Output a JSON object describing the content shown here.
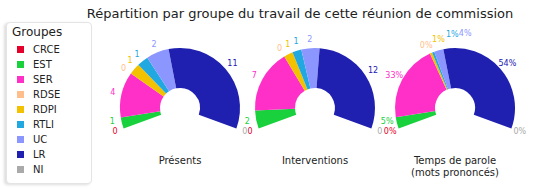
{
  "title": "Répartition par groupe du travail de cette réunion de commission",
  "legend_title": "Groupes",
  "chart_data": [
    {
      "type": "pie",
      "title": "Présents",
      "categories": [
        "CRCE",
        "EST",
        "SER",
        "RDSE",
        "RDPI",
        "RTLI",
        "UC",
        "LR",
        "NI"
      ],
      "values": [
        0,
        1,
        4,
        0,
        1,
        1,
        2,
        11,
        0
      ],
      "colors": [
        "#e4002b",
        "#19d13c",
        "#ff30c8",
        "#ffbf8c",
        "#f2c200",
        "#22a8e0",
        "#8c96ff",
        "#2020b0",
        "#aaaaaa"
      ],
      "data_labels": true
    },
    {
      "type": "pie",
      "title": "Interventions",
      "categories": [
        "CRCE",
        "EST",
        "SER",
        "RDSE",
        "RDPI",
        "RTLI",
        "UC",
        "LR",
        "NI"
      ],
      "values": [
        0,
        2,
        7,
        0,
        1,
        1,
        2,
        12,
        0
      ],
      "colors": [
        "#e4002b",
        "#19d13c",
        "#ff30c8",
        "#ffbf8c",
        "#f2c200",
        "#22a8e0",
        "#8c96ff",
        "#2020b0",
        "#aaaaaa"
      ],
      "data_labels": true
    },
    {
      "type": "pie",
      "title": "Temps de parole",
      "subtitle": "(mots prononcés)",
      "categories": [
        "CRCE",
        "EST",
        "SER",
        "RDSE",
        "RDPI",
        "RTLI",
        "UC",
        "LR",
        "NI"
      ],
      "values": [
        0,
        5,
        33,
        0,
        1,
        1,
        4,
        54,
        0
      ],
      "value_labels": [
        "0%",
        "5%",
        "33%",
        "0%",
        "1%",
        "1%",
        "4%",
        "54%",
        "0%"
      ],
      "colors": [
        "#e4002b",
        "#19d13c",
        "#ff30c8",
        "#ffbf8c",
        "#f2c200",
        "#22a8e0",
        "#8c96ff",
        "#2020b0",
        "#aaaaaa"
      ],
      "data_labels": true
    }
  ]
}
